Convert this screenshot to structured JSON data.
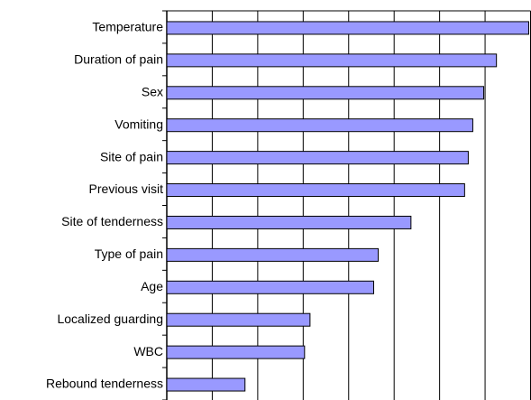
{
  "chart_data": {
    "type": "barh",
    "categories": [
      "Temperature",
      "Duration of pain",
      "Sex",
      "Vomiting",
      "Site of pain",
      "Previous visit",
      "Site of tenderness",
      "Type of pain",
      "Age",
      "Localized guarding",
      "WBC",
      "Rebound tenderness"
    ],
    "values": [
      7.96,
      7.25,
      6.97,
      6.73,
      6.63,
      6.55,
      5.37,
      4.65,
      4.55,
      3.15,
      3.03,
      1.72
    ],
    "color": "#9999ff",
    "xlim": [
      0,
      8
    ],
    "xticks": [
      0,
      1,
      2,
      3,
      4,
      5,
      6,
      7,
      8
    ],
    "grid": true
  }
}
